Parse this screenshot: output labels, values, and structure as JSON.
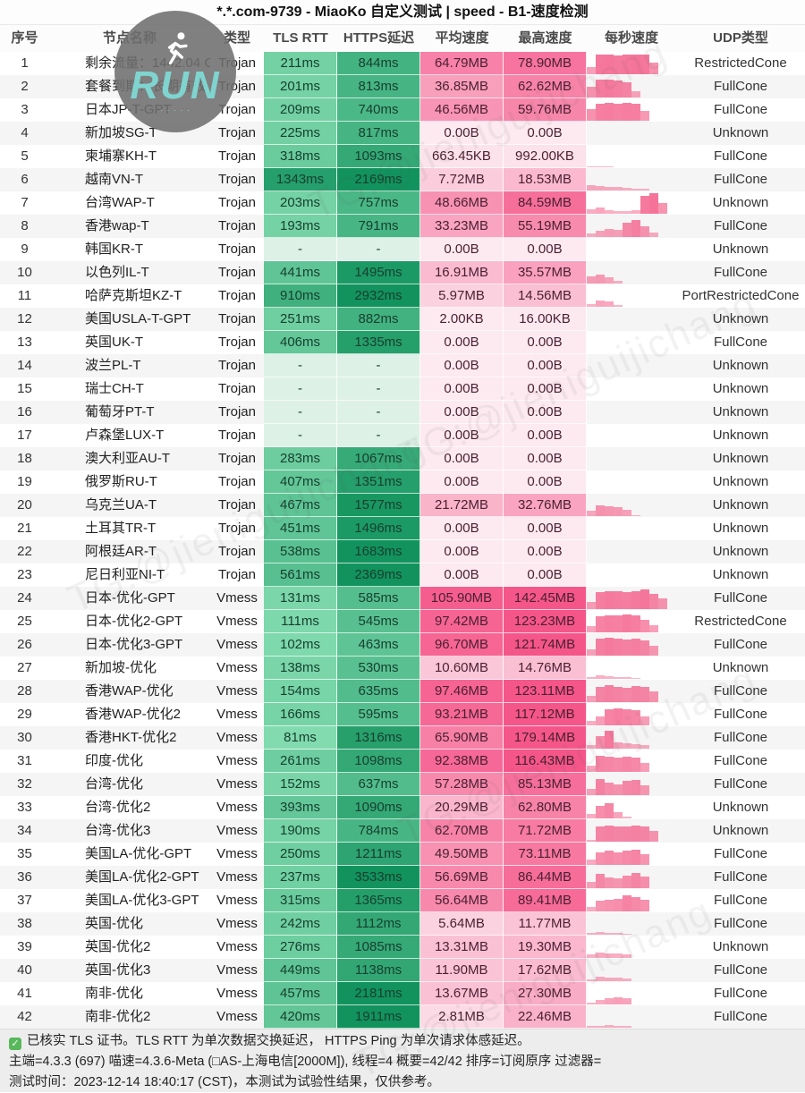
{
  "title": "*.*.com-9739 - MiaoKo 自定义测试 | speed - B1-速度检测",
  "columns": [
    "序号",
    "节点名称",
    "类型",
    "TLS RTT",
    "HTTPS延迟",
    "平均速度",
    "最高速度",
    "每秒速度",
    "UDP类型"
  ],
  "watermark": {
    "badge_text": "RUN",
    "badge_subtext": "· · · · ·",
    "runner_icon": "running-person",
    "tg_text": "TG:@jieniguijichang"
  },
  "colors": {
    "latency_fast": "#82dbaf",
    "latency_slow": "#12935d",
    "latency_none": "#def1e7",
    "speed_low": "#fceaf0",
    "speed_high": "#f5568a",
    "bar": "#f46890",
    "check": "#58b85c"
  },
  "rows": [
    {
      "no": "1",
      "name": "剩余流量：1442.04 GB",
      "type": "Trojan",
      "tls": "211ms",
      "https": "844ms",
      "avg": "64.79MB",
      "max": "78.90MB",
      "udp": "RestrictedCone",
      "bars": [
        0.35,
        0.9,
        0.92,
        0.88,
        0.9,
        0.93,
        0.9,
        0.55
      ]
    },
    {
      "no": "2",
      "name": "套餐到期：长期有效",
      "type": "Trojan",
      "tls": "201ms",
      "https": "813ms",
      "avg": "36.85MB",
      "max": "62.62MB",
      "udp": "FullCone",
      "bars": [
        0.5,
        0.82,
        0.85,
        0.8,
        0.72,
        0.3
      ]
    },
    {
      "no": "3",
      "name": "日本JP-T-GPT",
      "type": "Trojan",
      "tls": "209ms",
      "https": "740ms",
      "avg": "46.56MB",
      "max": "59.76MB",
      "udp": "FullCone",
      "bars": [
        0.55,
        0.8,
        0.82,
        0.78,
        0.82,
        0.8,
        0.45
      ]
    },
    {
      "no": "4",
      "name": "新加坡SG-T",
      "type": "Trojan",
      "tls": "225ms",
      "https": "817ms",
      "avg": "0.00B",
      "max": "0.00B",
      "udp": "Unknown",
      "bars": []
    },
    {
      "no": "5",
      "name": "柬埔寨KH-T",
      "type": "Trojan",
      "tls": "318ms",
      "https": "1093ms",
      "avg": "663.45KB",
      "max": "992.00KB",
      "udp": "FullCone",
      "bars": [
        0.06,
        0.05,
        0.04
      ]
    },
    {
      "no": "6",
      "name": "越南VN-T",
      "type": "Trojan",
      "tls": "1343ms",
      "https": "2169ms",
      "avg": "7.72MB",
      "max": "18.53MB",
      "udp": "FullCone",
      "bars": [
        0.25,
        0.22,
        0.18,
        0.15,
        0.12,
        0.1,
        0.08
      ]
    },
    {
      "no": "7",
      "name": "台湾WAP-T",
      "type": "Trojan",
      "tls": "203ms",
      "https": "757ms",
      "avg": "48.66MB",
      "max": "84.59MB",
      "udp": "Unknown",
      "bars": [
        0.2,
        0.28,
        0.15,
        0.12,
        0.12,
        0.18,
        0.85,
        0.95,
        0.5
      ]
    },
    {
      "no": "8",
      "name": "香港wap-T",
      "type": "Trojan",
      "tls": "193ms",
      "https": "791ms",
      "avg": "33.23MB",
      "max": "55.19MB",
      "udp": "FullCone",
      "bars": [
        0.15,
        0.3,
        0.38,
        0.32,
        0.65,
        0.78,
        0.5,
        0.2
      ]
    },
    {
      "no": "9",
      "name": "韩国KR-T",
      "type": "Trojan",
      "tls": "-",
      "https": "-",
      "avg": "0.00B",
      "max": "0.00B",
      "udp": "Unknown",
      "bars": []
    },
    {
      "no": "10",
      "name": "以色列IL-T",
      "type": "Trojan",
      "tls": "441ms",
      "https": "1495ms",
      "avg": "16.91MB",
      "max": "35.57MB",
      "udp": "FullCone",
      "bars": [
        0.35,
        0.42,
        0.28,
        0.12
      ]
    },
    {
      "no": "11",
      "name": "哈萨克斯坦KZ-T",
      "type": "Trojan",
      "tls": "910ms",
      "https": "2932ms",
      "avg": "5.97MB",
      "max": "14.56MB",
      "udp": "PortRestrictedCone",
      "bars": [
        0.12,
        0.3,
        0.26,
        0.1
      ]
    },
    {
      "no": "12",
      "name": "美国USLA-T-GPT",
      "type": "Trojan",
      "tls": "251ms",
      "https": "882ms",
      "avg": "2.00KB",
      "max": "16.00KB",
      "udp": "Unknown",
      "bars": []
    },
    {
      "no": "13",
      "name": "英国UK-T",
      "type": "Trojan",
      "tls": "406ms",
      "https": "1335ms",
      "avg": "0.00B",
      "max": "0.00B",
      "udp": "FullCone",
      "bars": []
    },
    {
      "no": "14",
      "name": "波兰PL-T",
      "type": "Trojan",
      "tls": "-",
      "https": "-",
      "avg": "0.00B",
      "max": "0.00B",
      "udp": "Unknown",
      "bars": []
    },
    {
      "no": "15",
      "name": "瑞士CH-T",
      "type": "Trojan",
      "tls": "-",
      "https": "-",
      "avg": "0.00B",
      "max": "0.00B",
      "udp": "Unknown",
      "bars": []
    },
    {
      "no": "16",
      "name": "葡萄牙PT-T",
      "type": "Trojan",
      "tls": "-",
      "https": "-",
      "avg": "0.00B",
      "max": "0.00B",
      "udp": "Unknown",
      "bars": []
    },
    {
      "no": "17",
      "name": "卢森堡LUX-T",
      "type": "Trojan",
      "tls": "-",
      "https": "-",
      "avg": "0.00B",
      "max": "0.00B",
      "udp": "Unknown",
      "bars": []
    },
    {
      "no": "18",
      "name": "澳大利亚AU-T",
      "type": "Trojan",
      "tls": "283ms",
      "https": "1067ms",
      "avg": "0.00B",
      "max": "0.00B",
      "udp": "Unknown",
      "bars": []
    },
    {
      "no": "19",
      "name": "俄罗斯RU-T",
      "type": "Trojan",
      "tls": "407ms",
      "https": "1351ms",
      "avg": "0.00B",
      "max": "0.00B",
      "udp": "Unknown",
      "bars": []
    },
    {
      "no": "20",
      "name": "乌克兰UA-T",
      "type": "Trojan",
      "tls": "467ms",
      "https": "1577ms",
      "avg": "21.72MB",
      "max": "32.76MB",
      "udp": "Unknown",
      "bars": [
        0.25,
        0.5,
        0.45,
        0.42,
        0.3,
        0.05
      ]
    },
    {
      "no": "21",
      "name": "土耳其TR-T",
      "type": "Trojan",
      "tls": "451ms",
      "https": "1496ms",
      "avg": "0.00B",
      "max": "0.00B",
      "udp": "Unknown",
      "bars": []
    },
    {
      "no": "22",
      "name": "阿根廷AR-T",
      "type": "Trojan",
      "tls": "538ms",
      "https": "1683ms",
      "avg": "0.00B",
      "max": "0.00B",
      "udp": "Unknown",
      "bars": []
    },
    {
      "no": "23",
      "name": "尼日利亚NI-T",
      "type": "Trojan",
      "tls": "561ms",
      "https": "2369ms",
      "avg": "0.00B",
      "max": "0.00B",
      "udp": "Unknown",
      "bars": []
    },
    {
      "no": "24",
      "name": "日本-优化-GPT",
      "type": "Vmess",
      "tls": "131ms",
      "https": "585ms",
      "avg": "105.90MB",
      "max": "142.45MB",
      "udp": "FullCone",
      "bars": [
        0.35,
        0.8,
        0.85,
        0.82,
        0.8,
        0.85,
        0.9,
        0.7,
        0.5
      ]
    },
    {
      "no": "25",
      "name": "日本-优化2-GPT",
      "type": "Vmess",
      "tls": "111ms",
      "https": "545ms",
      "avg": "97.42MB",
      "max": "123.23MB",
      "udp": "RestrictedCone",
      "bars": [
        0.3,
        0.75,
        0.8,
        0.78,
        0.85,
        0.8,
        0.6,
        0.35
      ]
    },
    {
      "no": "26",
      "name": "日本-优化3-GPT",
      "type": "Vmess",
      "tls": "102ms",
      "https": "463ms",
      "avg": "96.70MB",
      "max": "121.74MB",
      "udp": "FullCone",
      "bars": [
        0.3,
        0.8,
        0.85,
        0.8,
        0.75,
        0.8,
        0.7,
        0.45
      ]
    },
    {
      "no": "27",
      "name": "新加坡-优化",
      "type": "Vmess",
      "tls": "138ms",
      "https": "530ms",
      "avg": "10.60MB",
      "max": "14.76MB",
      "udp": "Unknown",
      "bars": [
        0.1,
        0.15,
        0.12,
        0.1,
        0.08,
        0.05
      ]
    },
    {
      "no": "28",
      "name": "香港WAP-优化",
      "type": "Vmess",
      "tls": "154ms",
      "https": "635ms",
      "avg": "97.46MB",
      "max": "123.11MB",
      "udp": "FullCone",
      "bars": [
        0.3,
        0.7,
        0.78,
        0.72,
        0.68,
        0.75,
        0.7,
        0.5
      ]
    },
    {
      "no": "29",
      "name": "香港WAP-优化2",
      "type": "Vmess",
      "tls": "166ms",
      "https": "595ms",
      "avg": "93.21MB",
      "max": "117.12MB",
      "udp": "FullCone",
      "bars": [
        0.2,
        0.4,
        0.75,
        0.8,
        0.75,
        0.7,
        0.4
      ]
    },
    {
      "no": "30",
      "name": "香港HKT-优化2",
      "type": "Vmess",
      "tls": "81ms",
      "https": "1316ms",
      "avg": "65.90MB",
      "max": "179.14MB",
      "udp": "FullCone",
      "bars": [
        0.15,
        0.6,
        0.85,
        0.3,
        0.25,
        0.2,
        0.15
      ]
    },
    {
      "no": "31",
      "name": "印度-优化",
      "type": "Vmess",
      "tls": "261ms",
      "https": "1098ms",
      "avg": "92.38MB",
      "max": "116.43MB",
      "udp": "FullCone",
      "bars": [
        0.3,
        0.75,
        0.7,
        0.68,
        0.72,
        0.65,
        0.4
      ]
    },
    {
      "no": "32",
      "name": "台湾-优化",
      "type": "Vmess",
      "tls": "152ms",
      "https": "637ms",
      "avg": "57.28MB",
      "max": "85.13MB",
      "udp": "FullCone",
      "bars": [
        0.3,
        0.75,
        0.6,
        0.5,
        0.65,
        0.7,
        0.45
      ]
    },
    {
      "no": "33",
      "name": "台湾-优化2",
      "type": "Vmess",
      "tls": "393ms",
      "https": "1090ms",
      "avg": "20.29MB",
      "max": "62.80MB",
      "udp": "Unknown",
      "bars": [
        0.2,
        0.6,
        0.7,
        0.3,
        0.1
      ]
    },
    {
      "no": "34",
      "name": "台湾-优化3",
      "type": "Vmess",
      "tls": "190ms",
      "https": "784ms",
      "avg": "62.70MB",
      "max": "71.72MB",
      "udp": "Unknown",
      "bars": [
        0.1,
        0.7,
        0.75,
        0.7,
        0.72,
        0.75,
        0.7,
        0.5
      ]
    },
    {
      "no": "35",
      "name": "美国LA-优化-GPT",
      "type": "Vmess",
      "tls": "250ms",
      "https": "1211ms",
      "avg": "49.50MB",
      "max": "73.11MB",
      "udp": "FullCone",
      "bars": [
        0.25,
        0.6,
        0.65,
        0.6,
        0.68,
        0.72,
        0.5
      ]
    },
    {
      "no": "36",
      "name": "美国LA-优化2-GPT",
      "type": "Vmess",
      "tls": "237ms",
      "https": "3533ms",
      "avg": "56.69MB",
      "max": "86.44MB",
      "udp": "FullCone",
      "bars": [
        0.3,
        0.65,
        0.5,
        0.45,
        0.6,
        0.7,
        0.55
      ]
    },
    {
      "no": "37",
      "name": "美国LA-优化3-GPT",
      "type": "Vmess",
      "tls": "315ms",
      "https": "1365ms",
      "avg": "56.64MB",
      "max": "89.41MB",
      "udp": "FullCone",
      "bars": [
        0.2,
        0.5,
        0.55,
        0.6,
        0.75,
        0.65,
        0.55
      ]
    },
    {
      "no": "38",
      "name": "英国-优化",
      "type": "Vmess",
      "tls": "242ms",
      "https": "1112ms",
      "avg": "5.64MB",
      "max": "11.77MB",
      "udp": "FullCone",
      "bars": [
        0.1,
        0.12,
        0.1,
        0.08,
        0.05
      ]
    },
    {
      "no": "39",
      "name": "英国-优化2",
      "type": "Vmess",
      "tls": "276ms",
      "https": "1085ms",
      "avg": "13.31MB",
      "max": "19.30MB",
      "udp": "Unknown",
      "bars": [
        0.15,
        0.25,
        0.22,
        0.2,
        0.18
      ]
    },
    {
      "no": "40",
      "name": "英国-优化3",
      "type": "Vmess",
      "tls": "449ms",
      "https": "1138ms",
      "avg": "11.90MB",
      "max": "17.62MB",
      "udp": "FullCone",
      "bars": [
        0.1,
        0.2,
        0.18,
        0.15,
        0.12
      ]
    },
    {
      "no": "41",
      "name": "南非-优化",
      "type": "Vmess",
      "tls": "457ms",
      "https": "2181ms",
      "avg": "13.67MB",
      "max": "27.30MB",
      "udp": "FullCone",
      "bars": [
        0.1,
        0.2,
        0.3,
        0.35,
        0.3
      ]
    },
    {
      "no": "42",
      "name": "南非-优化2",
      "type": "Vmess",
      "tls": "420ms",
      "https": "1911ms",
      "avg": "2.81MB",
      "max": "22.46MB",
      "udp": "FullCone",
      "bars": [
        0.08,
        0.1,
        0.12,
        0.1,
        0.08
      ]
    }
  ],
  "footer": {
    "line1": "已核实 TLS 证书。TLS RTT 为单次数据交换延迟， HTTPS Ping 为单次请求体感延迟。",
    "line2": "主端=4.3.3 (697) 喵速=4.3.6-Meta (□AS-上海电信[2000M]), 线程=4 概要=42/42 排序=订阅原序 过滤器=",
    "line3": "测试时间：2023-12-14 18:40:17 (CST)，本测试为试验性结果，仅供参考。"
  }
}
